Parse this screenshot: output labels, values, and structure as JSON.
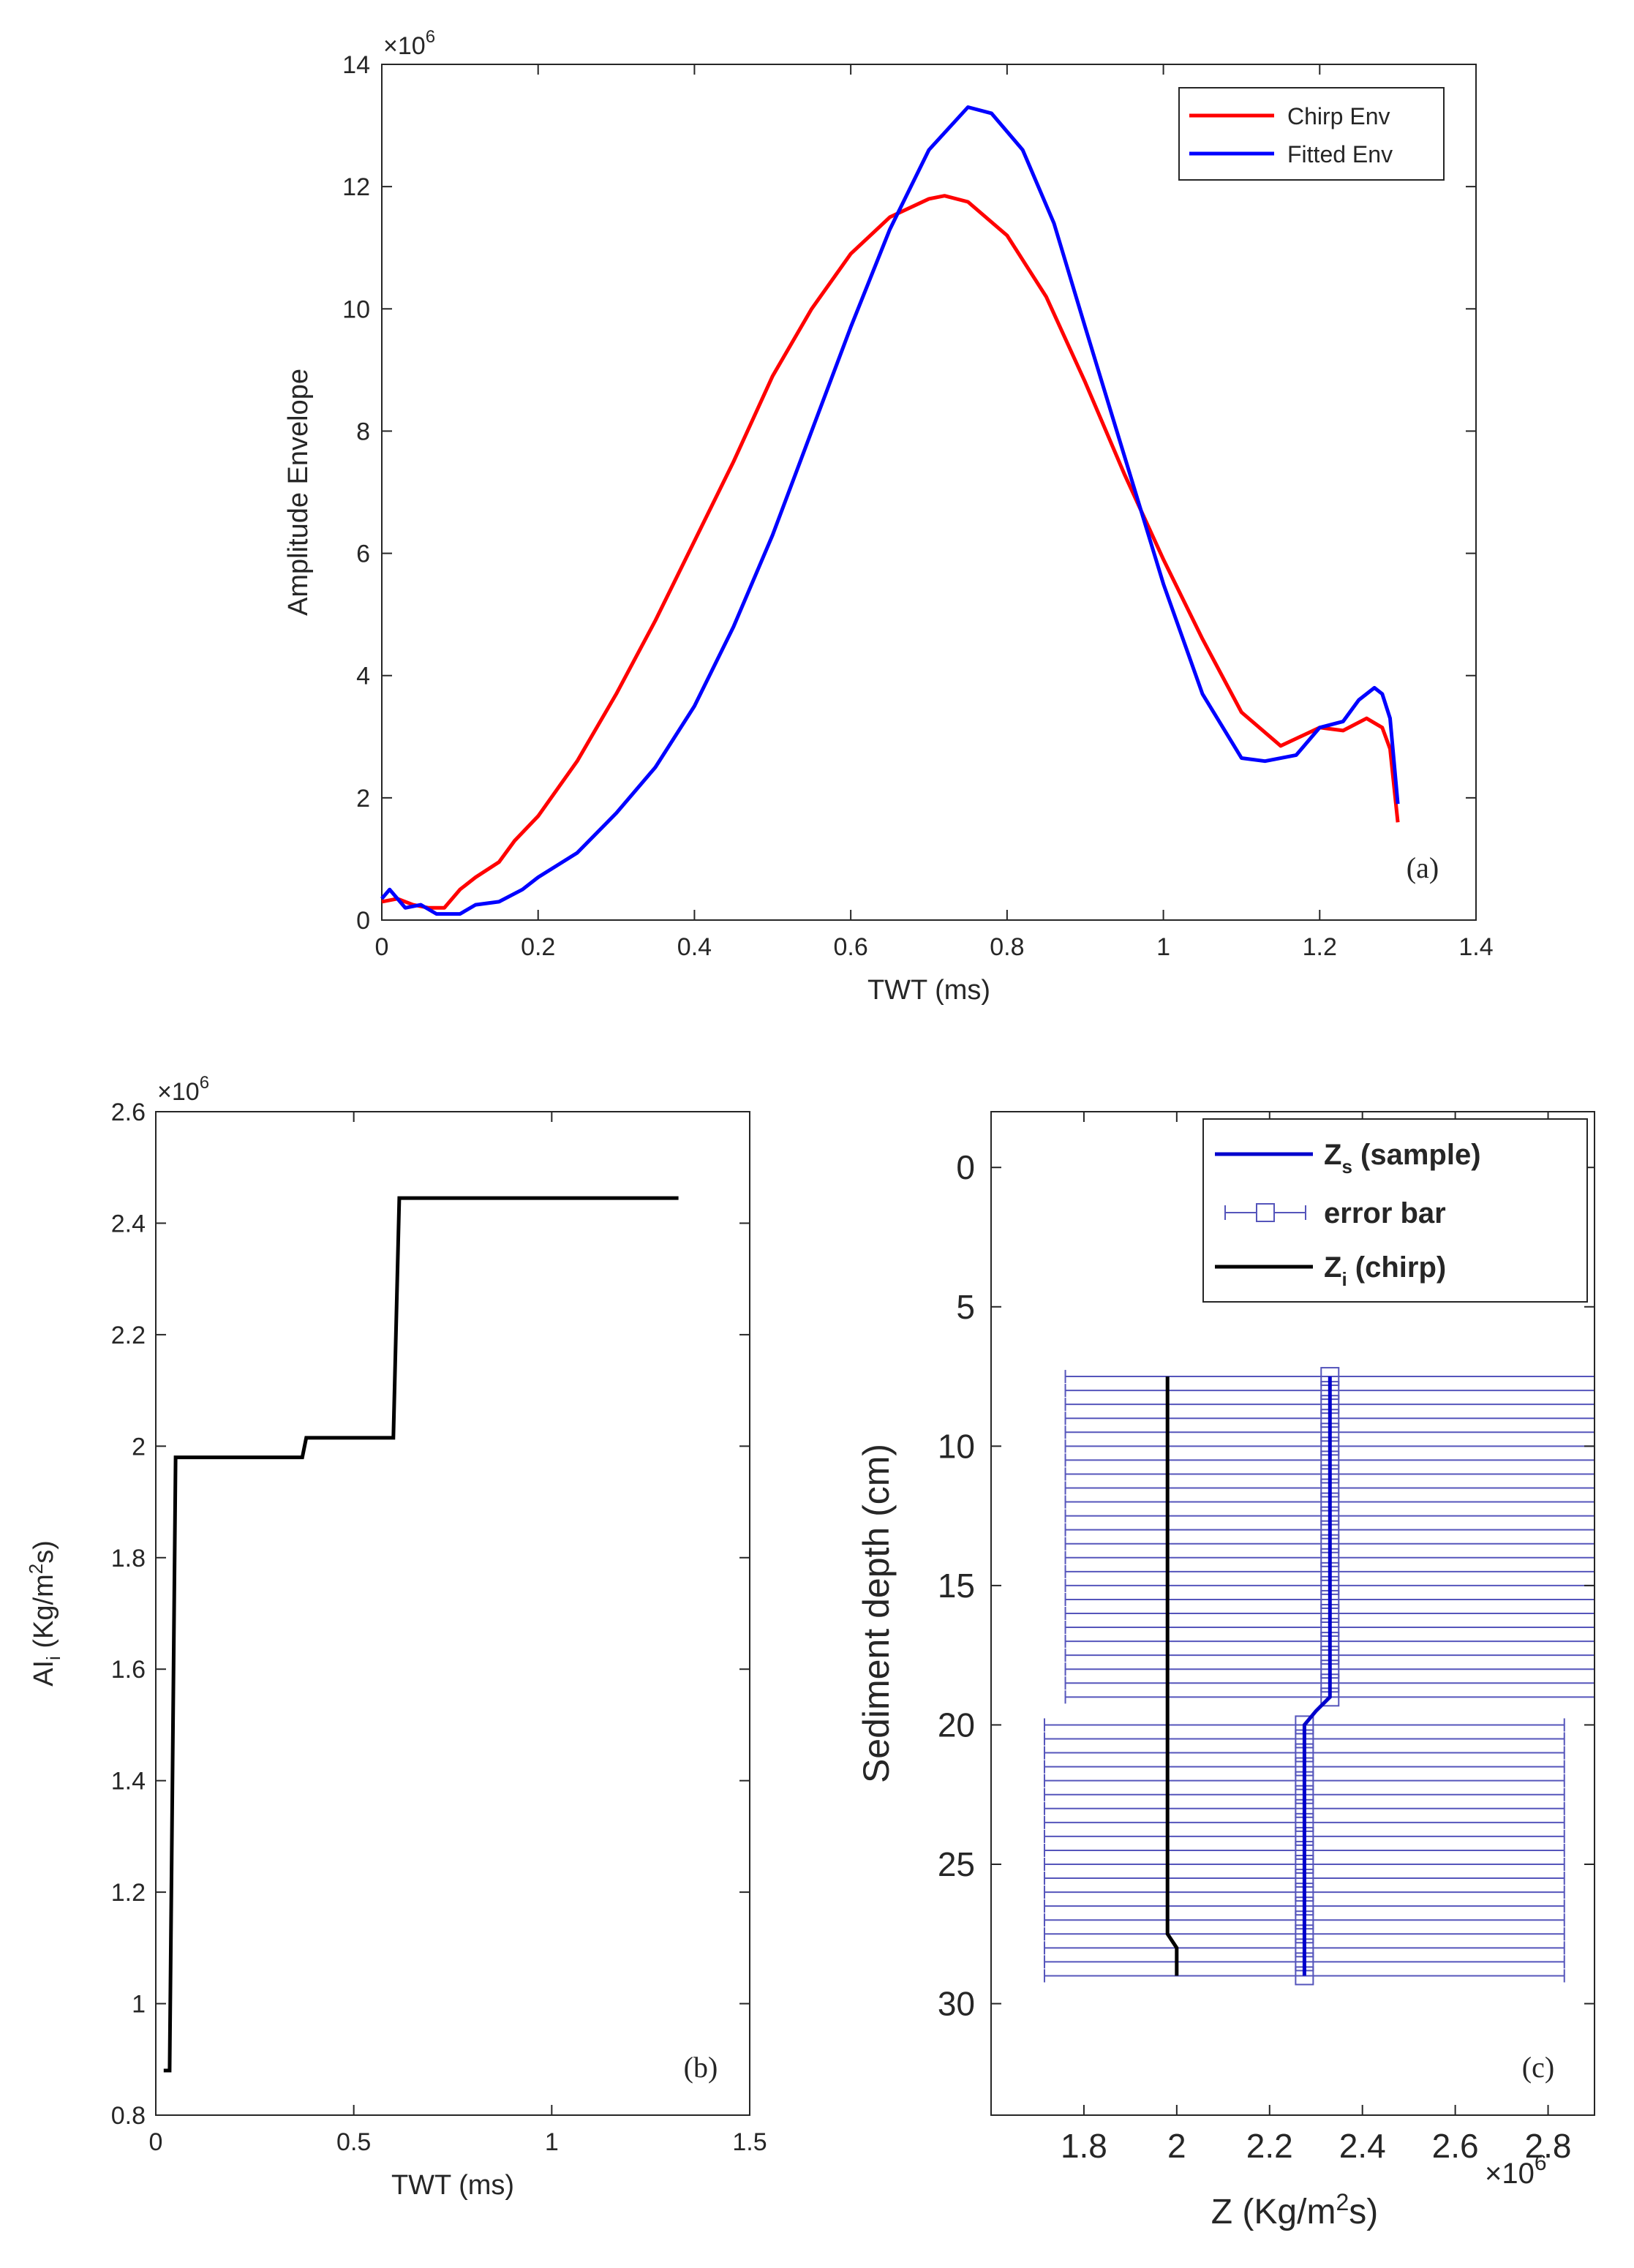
{
  "chart_data": [
    {
      "id": "a",
      "type": "line",
      "panel_label": "(a)",
      "xlabel": "TWT (ms)",
      "ylabel": "Amplitude Envelope",
      "xlim": [
        0,
        1.4
      ],
      "ylim": [
        0,
        14
      ],
      "xticks": [
        0,
        0.2,
        0.4,
        0.6,
        0.8,
        1,
        1.2,
        1.4
      ],
      "xtick_labels": [
        "0",
        "0.2",
        "0.4",
        "0.6",
        "0.8",
        "1",
        "1.2",
        "1.4"
      ],
      "yticks": [
        0,
        2,
        4,
        6,
        8,
        10,
        12,
        14
      ],
      "ytick_labels": [
        "0",
        "2",
        "4",
        "6",
        "8",
        "10",
        "12",
        "14"
      ],
      "y_exponent_base": "×10",
      "y_exponent_power": "6",
      "legend_position": "top-right",
      "series": [
        {
          "name": "Chirp Env",
          "color": "#ff0000",
          "points": [
            [
              0,
              0.3
            ],
            [
              0.02,
              0.35
            ],
            [
              0.04,
              0.25
            ],
            [
              0.06,
              0.2
            ],
            [
              0.08,
              0.2
            ],
            [
              0.1,
              0.5
            ],
            [
              0.12,
              0.7
            ],
            [
              0.15,
              0.95
            ],
            [
              0.17,
              1.3
            ],
            [
              0.2,
              1.7
            ],
            [
              0.25,
              2.6
            ],
            [
              0.3,
              3.7
            ],
            [
              0.35,
              4.9
            ],
            [
              0.4,
              6.2
            ],
            [
              0.45,
              7.5
            ],
            [
              0.5,
              8.9
            ],
            [
              0.55,
              10.0
            ],
            [
              0.6,
              10.9
            ],
            [
              0.65,
              11.5
            ],
            [
              0.7,
              11.8
            ],
            [
              0.72,
              11.85
            ],
            [
              0.75,
              11.75
            ],
            [
              0.8,
              11.2
            ],
            [
              0.85,
              10.2
            ],
            [
              0.9,
              8.8
            ],
            [
              0.95,
              7.3
            ],
            [
              1.0,
              5.9
            ],
            [
              1.05,
              4.6
            ],
            [
              1.1,
              3.4
            ],
            [
              1.15,
              2.85
            ],
            [
              1.2,
              3.15
            ],
            [
              1.23,
              3.1
            ],
            [
              1.26,
              3.3
            ],
            [
              1.28,
              3.15
            ],
            [
              1.29,
              2.8
            ],
            [
              1.3,
              1.6
            ]
          ]
        },
        {
          "name": "Fitted Env",
          "color": "#0000ff",
          "points": [
            [
              0,
              0.35
            ],
            [
              0.01,
              0.5
            ],
            [
              0.03,
              0.2
            ],
            [
              0.05,
              0.25
            ],
            [
              0.07,
              0.1
            ],
            [
              0.09,
              0.1
            ],
            [
              0.1,
              0.1
            ],
            [
              0.12,
              0.25
            ],
            [
              0.15,
              0.3
            ],
            [
              0.18,
              0.5
            ],
            [
              0.2,
              0.7
            ],
            [
              0.25,
              1.1
            ],
            [
              0.3,
              1.75
            ],
            [
              0.35,
              2.5
            ],
            [
              0.4,
              3.5
            ],
            [
              0.45,
              4.8
            ],
            [
              0.5,
              6.3
            ],
            [
              0.55,
              8.0
            ],
            [
              0.6,
              9.7
            ],
            [
              0.65,
              11.3
            ],
            [
              0.7,
              12.6
            ],
            [
              0.75,
              13.3
            ],
            [
              0.78,
              13.2
            ],
            [
              0.82,
              12.6
            ],
            [
              0.86,
              11.4
            ],
            [
              0.9,
              9.7
            ],
            [
              0.95,
              7.6
            ],
            [
              1.0,
              5.5
            ],
            [
              1.05,
              3.7
            ],
            [
              1.1,
              2.65
            ],
            [
              1.13,
              2.6
            ],
            [
              1.17,
              2.7
            ],
            [
              1.2,
              3.15
            ],
            [
              1.23,
              3.25
            ],
            [
              1.25,
              3.6
            ],
            [
              1.27,
              3.8
            ],
            [
              1.28,
              3.7
            ],
            [
              1.29,
              3.3
            ],
            [
              1.3,
              1.9
            ]
          ]
        }
      ]
    },
    {
      "id": "b",
      "type": "line",
      "panel_label": "(b)",
      "xlabel": "TWT (ms)",
      "ylabel_main": "AI",
      "ylabel_sub": "i",
      "ylabel_rest": " (Kg/m",
      "ylabel_sup": "2",
      "ylabel_end": "s)",
      "xlim": [
        0,
        1.5
      ],
      "ylim": [
        0.8,
        2.6
      ],
      "xticks": [
        0,
        0.5,
        1,
        1.5
      ],
      "xtick_labels": [
        "0",
        "0.5",
        "1",
        "1.5"
      ],
      "yticks": [
        0.8,
        1.0,
        1.2,
        1.4,
        1.6,
        1.8,
        2.0,
        2.2,
        2.4,
        2.6
      ],
      "ytick_labels": [
        "0.8",
        "1",
        "1.2",
        "1.4",
        "1.6",
        "1.8",
        "2",
        "2.2",
        "2.4",
        "2.6"
      ],
      "y_exponent_base": "×10",
      "y_exponent_power": "6",
      "series": [
        {
          "name": "AI",
          "color": "#000000",
          "points": [
            [
              0.02,
              0.88
            ],
            [
              0.035,
              0.88
            ],
            [
              0.05,
              1.98
            ],
            [
              0.37,
              1.98
            ],
            [
              0.38,
              2.015
            ],
            [
              0.6,
              2.015
            ],
            [
              0.615,
              2.445
            ],
            [
              1.32,
              2.445
            ]
          ]
        }
      ]
    },
    {
      "id": "c",
      "type": "line",
      "panel_label": "(c)",
      "xlabel_main": "Z (Kg/m",
      "xlabel_sup": "2",
      "xlabel_end": "s)",
      "ylabel": "Sediment depth (cm)",
      "xlim": [
        1.6,
        2.9
      ],
      "ylim": [
        -2,
        34
      ],
      "y_reversed": true,
      "xticks": [
        1.8,
        2.0,
        2.2,
        2.4,
        2.6,
        2.8
      ],
      "xtick_labels": [
        "1.8",
        "2",
        "2.2",
        "2.4",
        "2.6",
        "2.8"
      ],
      "yticks": [
        0,
        5,
        10,
        15,
        20,
        25,
        30
      ],
      "ytick_labels": [
        "0",
        "5",
        "10",
        "15",
        "20",
        "25",
        "30"
      ],
      "x_exponent_base": "×10",
      "x_exponent_power": "6",
      "legend_position": "top-right",
      "legend": [
        {
          "main": "Z",
          "sub": "s",
          "rest": " (sample)"
        },
        {
          "main": "error bar",
          "sub": "",
          "rest": ""
        },
        {
          "main": "Z",
          "sub": "i",
          "rest": " (chirp)"
        }
      ],
      "zs_color": "#0000cc",
      "errorbar_color": "#5555bb",
      "zi_color": "#000000",
      "error_groups": [
        {
          "depth_from": 7.5,
          "depth_to": 19.0,
          "step": 0.5,
          "z": 2.33,
          "xmin": 1.76,
          "xmax": 2.9
        },
        {
          "depth_from": 20.0,
          "depth_to": 29.0,
          "step": 0.5,
          "z": 2.275,
          "xmin": 1.715,
          "xmax": 2.835
        }
      ],
      "zs_points": [
        [
          2.33,
          7.5
        ],
        [
          2.33,
          19.0
        ],
        [
          2.3,
          19.5
        ],
        [
          2.275,
          20.0
        ],
        [
          2.275,
          29.0
        ]
      ],
      "zi_points": [
        [
          1.98,
          7.5
        ],
        [
          1.98,
          27.5
        ],
        [
          2.0,
          28.0
        ],
        [
          2.0,
          29.0
        ]
      ]
    }
  ]
}
